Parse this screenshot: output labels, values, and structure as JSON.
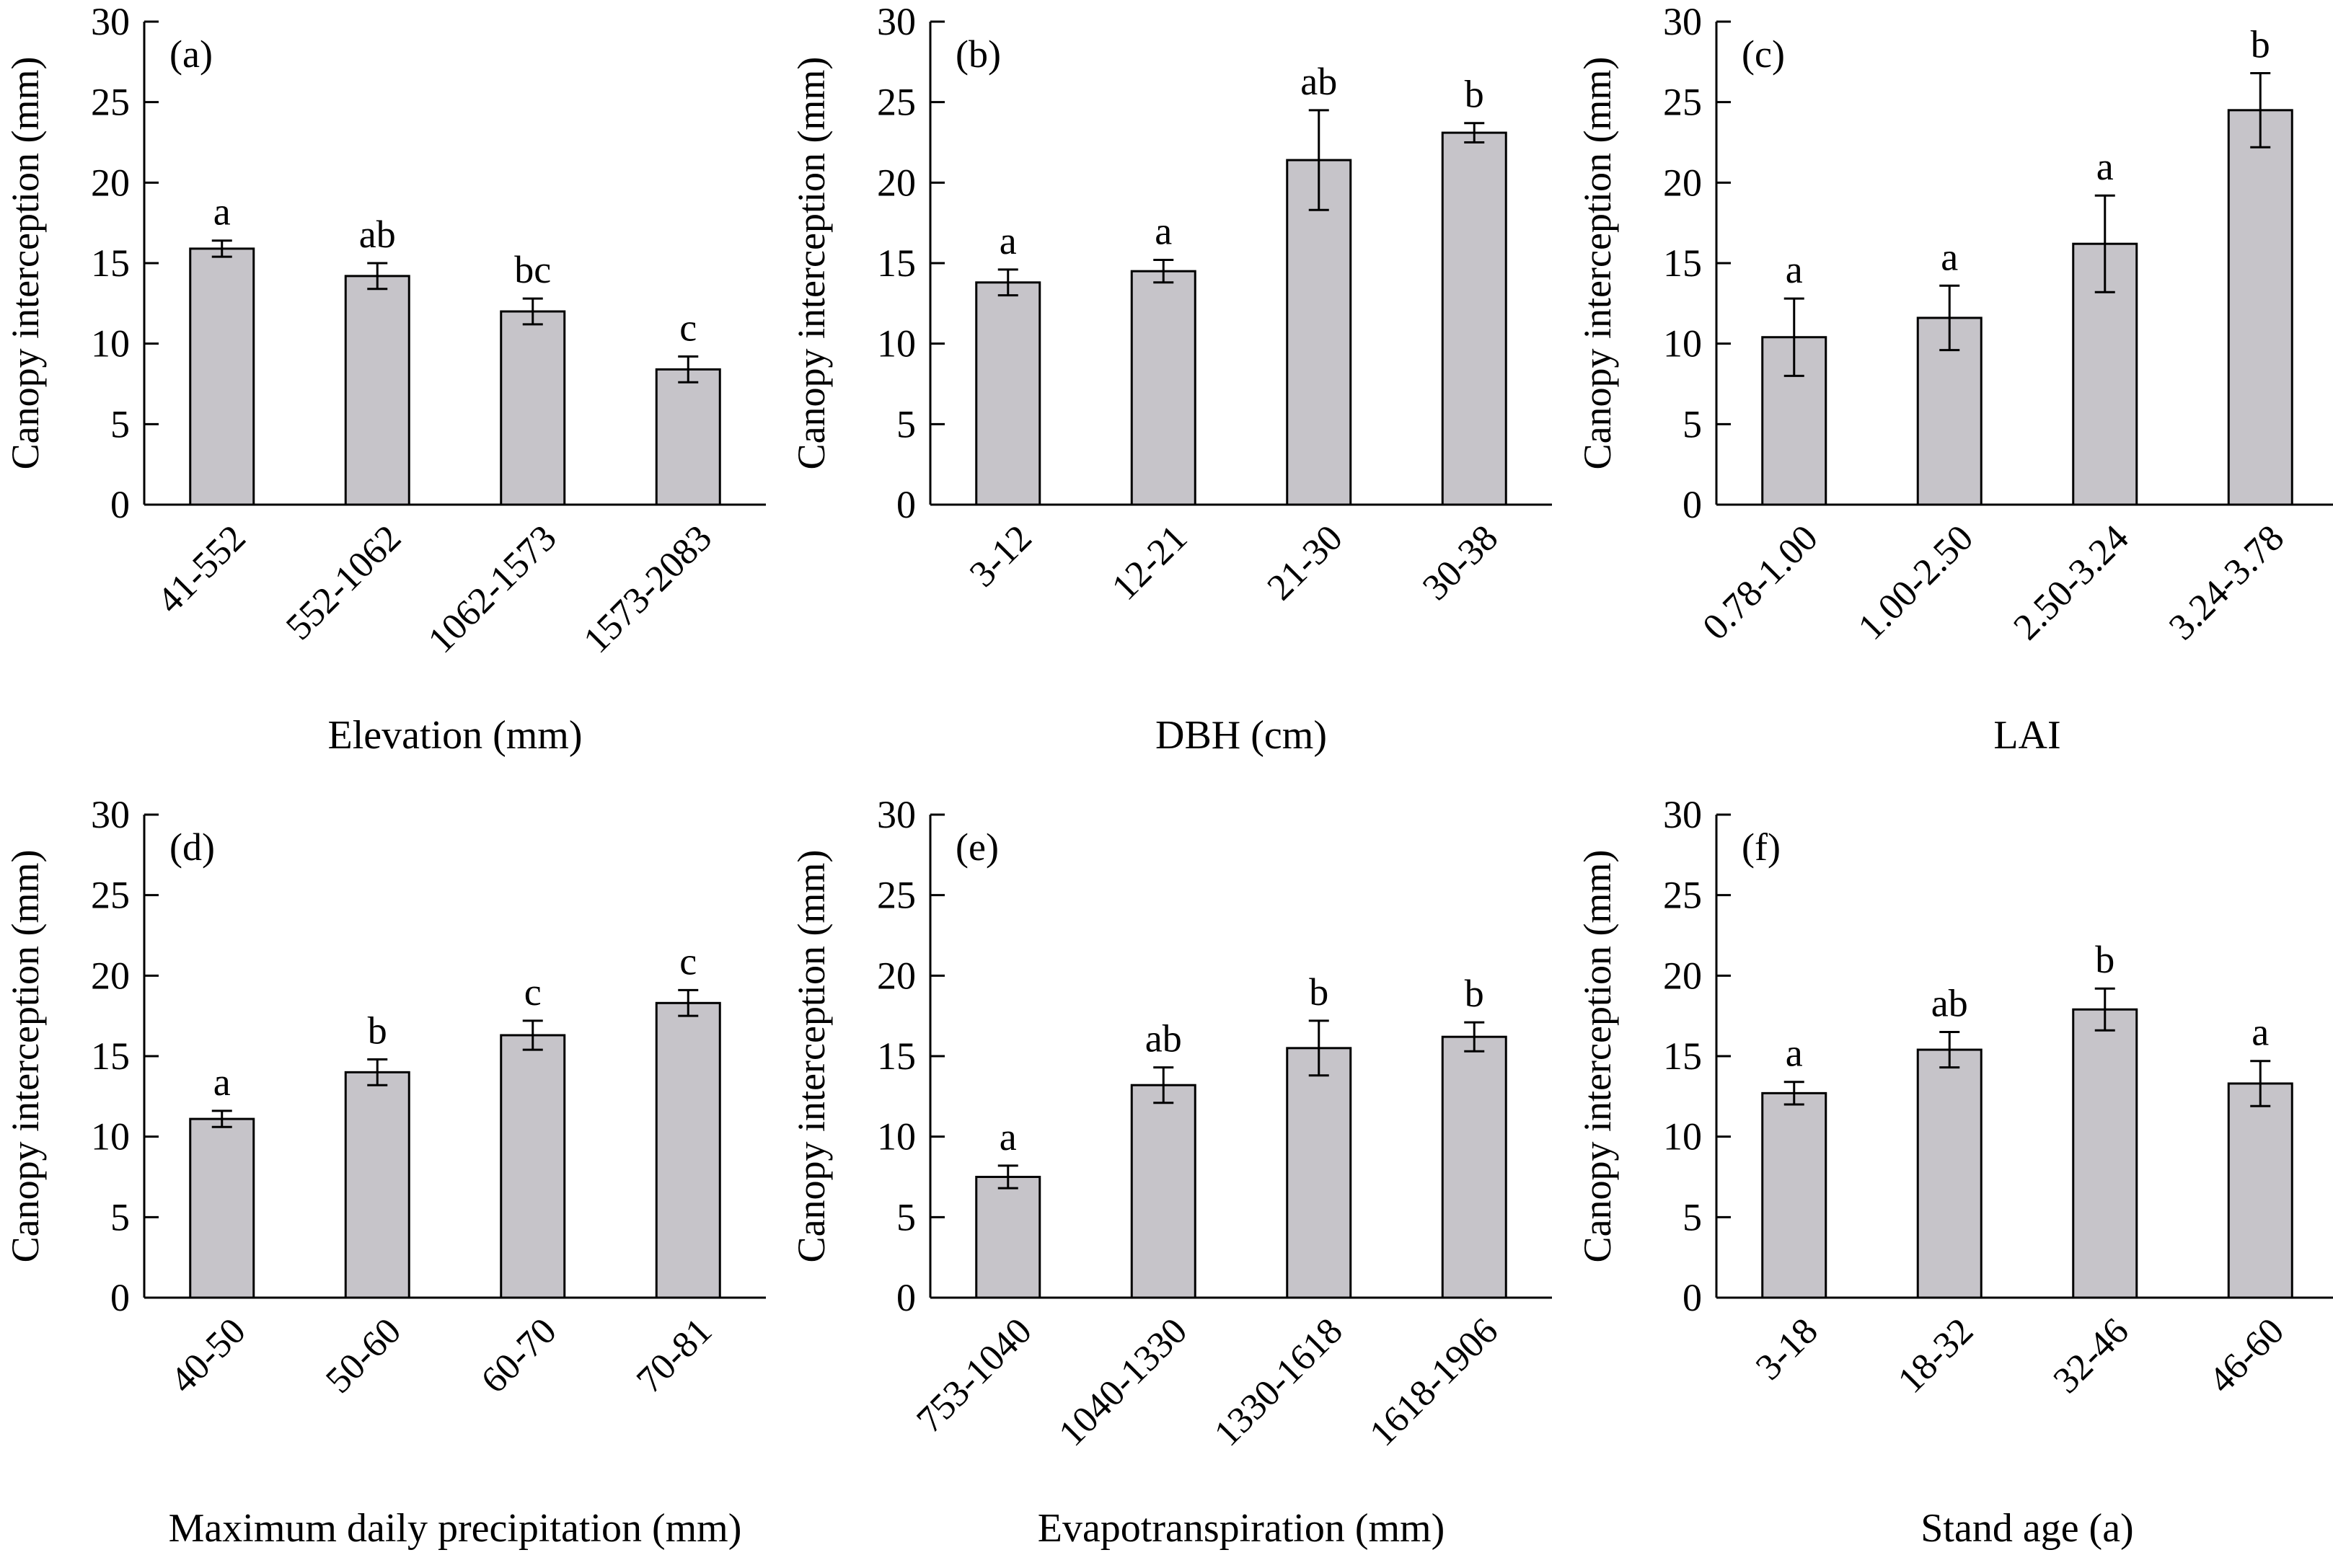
{
  "style": {
    "bar_fill": "#c6c4c9",
    "bar_stroke": "#000000",
    "axis_color": "#000000",
    "background": "#ffffff"
  },
  "chart_data": [
    {
      "panel": "(a)",
      "type": "bar",
      "ylabel": "Canopy interception (mm)",
      "xlabel": "Elevation (mm)",
      "ylim": [
        0,
        30
      ],
      "yticks": [
        0,
        5,
        10,
        15,
        20,
        25,
        30
      ],
      "categories": [
        "41-552",
        "552-1062",
        "1062-1573",
        "1573-2083"
      ],
      "values": [
        15.9,
        14.2,
        12.0,
        8.4
      ],
      "errors": [
        0.5,
        0.8,
        0.8,
        0.8
      ],
      "letters": [
        "a",
        "ab",
        "bc",
        "c"
      ]
    },
    {
      "panel": "(b)",
      "type": "bar",
      "ylabel": "Canopy interception (mm)",
      "xlabel": "DBH (cm)",
      "ylim": [
        0,
        30
      ],
      "yticks": [
        0,
        5,
        10,
        15,
        20,
        25,
        30
      ],
      "categories": [
        "3-12",
        "12-21",
        "21-30",
        "30-38"
      ],
      "values": [
        13.8,
        14.5,
        21.4,
        23.1
      ],
      "errors": [
        0.8,
        0.7,
        3.1,
        0.6
      ],
      "letters": [
        "a",
        "a",
        "ab",
        "b"
      ]
    },
    {
      "panel": "(c)",
      "type": "bar",
      "ylabel": "Canopy interception (mm)",
      "xlabel": "LAI",
      "ylim": [
        0,
        30
      ],
      "yticks": [
        0,
        5,
        10,
        15,
        20,
        25,
        30
      ],
      "categories": [
        "0.78-1.00",
        "1.00-2.50",
        "2.50-3.24",
        "3.24-3.78"
      ],
      "values": [
        10.4,
        11.6,
        16.2,
        24.5
      ],
      "errors": [
        2.4,
        2.0,
        3.0,
        2.3
      ],
      "letters": [
        "a",
        "a",
        "a",
        "b"
      ]
    },
    {
      "panel": "(d)",
      "type": "bar",
      "ylabel": "Canopy interception (mm)",
      "xlabel": "Maximum daily precipitation (mm)",
      "ylim": [
        0,
        30
      ],
      "yticks": [
        0,
        5,
        10,
        15,
        20,
        25,
        30
      ],
      "categories": [
        "40-50",
        "50-60",
        "60-70",
        "70-81"
      ],
      "values": [
        11.1,
        14.0,
        16.3,
        18.3
      ],
      "errors": [
        0.5,
        0.8,
        0.9,
        0.8
      ],
      "letters": [
        "a",
        "b",
        "c",
        "c"
      ]
    },
    {
      "panel": "(e)",
      "type": "bar",
      "ylabel": "Canopy interception (mm)",
      "xlabel": "Evapotranspiration (mm)",
      "ylim": [
        0,
        30
      ],
      "yticks": [
        0,
        5,
        10,
        15,
        20,
        25,
        30
      ],
      "categories": [
        "753-1040",
        "1040-1330",
        "1330-1618",
        "1618-1906"
      ],
      "values": [
        7.5,
        13.2,
        15.5,
        16.2
      ],
      "errors": [
        0.7,
        1.1,
        1.7,
        0.9
      ],
      "letters": [
        "a",
        "ab",
        "b",
        "b"
      ]
    },
    {
      "panel": "(f)",
      "type": "bar",
      "ylabel": "Canopy interception (mm)",
      "xlabel": "Stand age (a)",
      "ylim": [
        0,
        30
      ],
      "yticks": [
        0,
        5,
        10,
        15,
        20,
        25,
        30
      ],
      "categories": [
        "3-18",
        "18-32",
        "32-46",
        "46-60"
      ],
      "values": [
        12.7,
        15.4,
        17.9,
        13.3
      ],
      "errors": [
        0.7,
        1.1,
        1.3,
        1.4
      ],
      "letters": [
        "a",
        "ab",
        "b",
        "a"
      ]
    }
  ]
}
